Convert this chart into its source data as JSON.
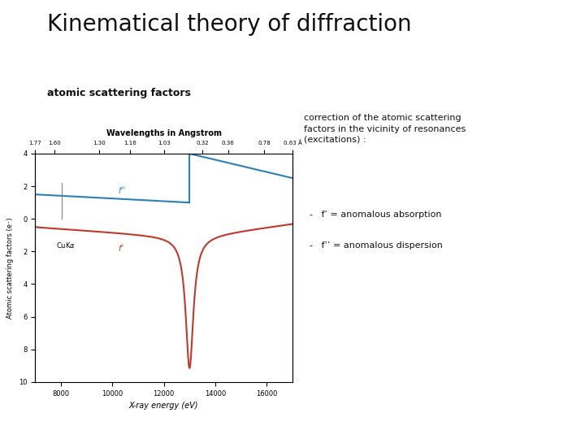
{
  "title": "Kinematical theory of diffraction",
  "subtitle": "atomic scattering factors",
  "correction_text": "correction of the atomic scattering\nfactors in the vicinity of resonances\n(excitations) :",
  "bullet1": "f’ = anomalous absorption",
  "bullet2": "f’’ = anomalous dispersion",
  "plot_title_top": "Wavelengths in Angstrom",
  "xlabel": "X-ray energy (eV)",
  "ylabel": "Atomic scattering factors (e⁻)",
  "ylim": [
    -10,
    4
  ],
  "xlim": [
    7000,
    17000
  ],
  "edge_energy": 13000,
  "cuka_energy": 8050,
  "top_tick_labels": [
    "1.77",
    "1.60",
    "1.30",
    "1.16",
    "1.03",
    "0.32",
    "0.36",
    "0.78",
    "0.63 Å"
  ],
  "top_tick_positions": [
    7000,
    7750,
    9500,
    10700,
    12000,
    13500,
    14500,
    15900,
    17000
  ],
  "bottom_tick_labels": [
    "8000",
    "10000",
    "12000",
    "14000",
    "16000"
  ],
  "bottom_tick_positions": [
    8000,
    10000,
    12000,
    14000,
    16000
  ],
  "ytick_labels": [
    "4",
    "2",
    "0",
    "2",
    "4",
    "6",
    "8",
    "10"
  ],
  "ytick_positions": [
    4,
    2,
    0,
    -2,
    -4,
    -6,
    -8,
    -10
  ],
  "f_prime_color": "#c0392b",
  "f_double_prime_color": "#2980b9",
  "title_fontsize": 20,
  "subtitle_fontsize": 9,
  "axis_fontsize": 6,
  "label_fontsize": 7,
  "annotation_fontsize": 7,
  "correction_fontsize": 8,
  "background_color": "#ffffff"
}
